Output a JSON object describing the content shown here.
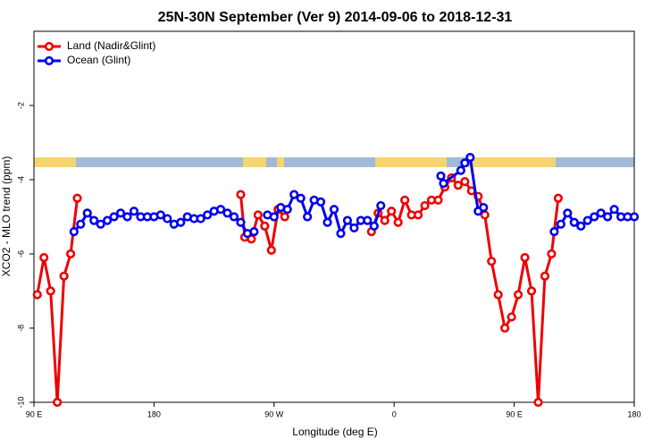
{
  "chart_data": {
    "type": "line",
    "title": "25N-30N September (Ver 9)   2014-09-06 to 2018-12-31",
    "x_label": "Longitude (deg E)",
    "y_label": "XCO2 - MLO trend (ppm)",
    "xlim": [
      90,
      540
    ],
    "xticks": [
      {
        "value": 90,
        "label": "90 E"
      },
      180,
      {
        "value": 270,
        "label": "90 W"
      },
      {
        "value": 360,
        "label": "0"
      },
      {
        "value": 450,
        "label": "90 E"
      },
      {
        "value": 540,
        "label": "180"
      }
    ],
    "ylim": [
      -10,
      0
    ],
    "yticks": [
      -10,
      -8,
      -6,
      -4,
      -2
    ],
    "legend": "top-left",
    "series": [
      {
        "name": "Land (Nadir&Glint)",
        "color": "#ee0000",
        "x": [
          92.5,
          97.5,
          102.5,
          107.5,
          112.5,
          117.5,
          122.5,
          null,
          245,
          248,
          253,
          258,
          263,
          268,
          273,
          278,
          null,
          343,
          348,
          353,
          358,
          363,
          368,
          373,
          378,
          383,
          388,
          393,
          398,
          403,
          408,
          413,
          418,
          423,
          428,
          433,
          438,
          443,
          448,
          453,
          458,
          463,
          468,
          473,
          478,
          483
        ],
        "values": [
          -7.1,
          -6.1,
          -7.0,
          -10,
          -6.6,
          -6.0,
          -4.5,
          null,
          -4.4,
          -5.55,
          -5.6,
          -4.95,
          -5.25,
          -5.9,
          -4.8,
          -5.0,
          null,
          -5.4,
          -4.9,
          -5.1,
          -4.85,
          -5.15,
          -4.55,
          -4.95,
          -4.95,
          -4.7,
          -4.55,
          -4.55,
          -4.2,
          -3.95,
          -4.15,
          -4.05,
          -4.3,
          -4.45,
          -4.95,
          -6.2,
          -7.1,
          -8.0,
          -7.7,
          -7.1,
          -6.1,
          -7.0,
          -10,
          -6.6,
          -6.0,
          -4.5
        ]
      },
      {
        "name": "Ocean (Glint)",
        "color": "#0000ee",
        "x": [
          120,
          125,
          130,
          135,
          140,
          145,
          150,
          155,
          160,
          165,
          170,
          175,
          180,
          185,
          190,
          195,
          200,
          205,
          210,
          215,
          220,
          225,
          230,
          235,
          240,
          245,
          250,
          255,
          null,
          265,
          270,
          275,
          280,
          285,
          290,
          295,
          300,
          305,
          310,
          315,
          320,
          325,
          330,
          335,
          340,
          345,
          350,
          null,
          395,
          397,
          410,
          413,
          417,
          423,
          427,
          null,
          480,
          485,
          490,
          495,
          500,
          505,
          510,
          515,
          520,
          525,
          530,
          535,
          540
        ],
        "values": [
          -5.4,
          -5.2,
          -4.9,
          -5.1,
          -5.2,
          -5.1,
          -5.0,
          -4.9,
          -5.0,
          -4.85,
          -5.0,
          -5.0,
          -5.0,
          -4.95,
          -5.05,
          -5.2,
          -5.15,
          -5.0,
          -5.05,
          -5.05,
          -4.95,
          -4.85,
          -4.8,
          -4.9,
          -5.0,
          -5.15,
          -5.45,
          -5.4,
          null,
          -4.95,
          -5.0,
          -4.75,
          -4.8,
          -4.4,
          -4.5,
          -5.0,
          -4.55,
          -4.6,
          -5.15,
          -4.8,
          -5.45,
          -5.1,
          -5.3,
          -5.1,
          -5.1,
          -5.25,
          -4.7,
          null,
          -3.9,
          -4.1,
          -3.75,
          -3.55,
          -3.4,
          -4.85,
          -4.75,
          null,
          -5.4,
          -5.2,
          -4.9,
          -5.15,
          -5.25,
          -5.1,
          -5.0,
          -4.9,
          -5.0,
          -4.8,
          -5.0,
          -5.0,
          -5.0
        ]
      }
    ]
  }
}
